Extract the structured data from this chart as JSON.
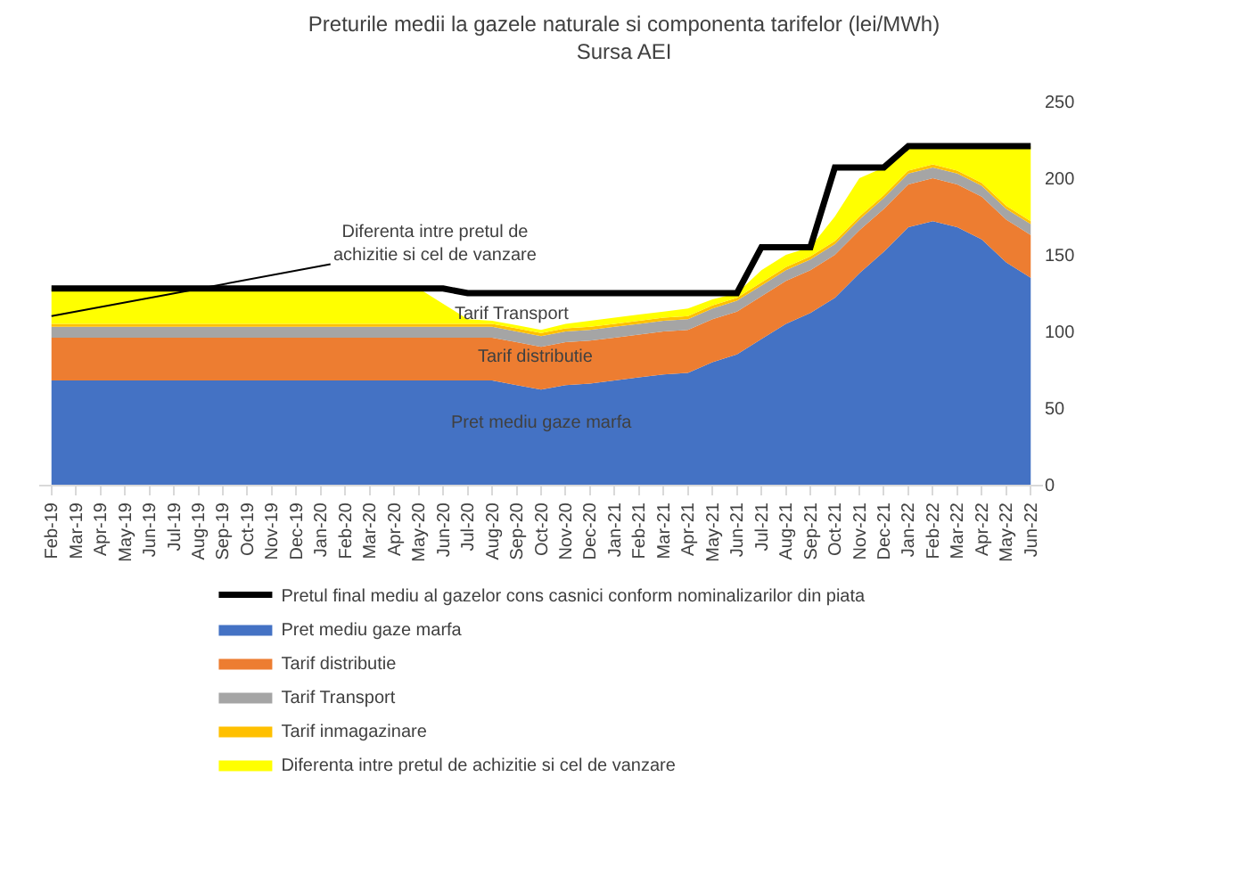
{
  "chart_data": {
    "type": "area",
    "stacked": true,
    "title": "Preturile medii la gazele naturale si componenta tarifelor (lei/MWh)",
    "subtitle": "Sursa AEI",
    "categories": [
      "Feb-19",
      "Mar-19",
      "Apr-19",
      "May-19",
      "Jun-19",
      "Jul-19",
      "Aug-19",
      "Sep-19",
      "Oct-19",
      "Nov-19",
      "Dec-19",
      "Jan-20",
      "Feb-20",
      "Mar-20",
      "Apr-20",
      "May-20",
      "Jun-20",
      "Jul-20",
      "Aug-20",
      "Sep-20",
      "Oct-20",
      "Nov-20",
      "Dec-20",
      "Jan-21",
      "Feb-21",
      "Mar-21",
      "Apr-21",
      "May-21",
      "Jun-21",
      "Jul-21",
      "Aug-21",
      "Sep-21",
      "Oct-21",
      "Nov-21",
      "Dec-21",
      "Jan-22",
      "Feb-22",
      "Mar-22",
      "Apr-22",
      "May-22",
      "Jun-22"
    ],
    "series": [
      {
        "name": "Pret mediu gaze marfa",
        "color": "#4472c4",
        "values": [
          68,
          68,
          68,
          68,
          68,
          68,
          68,
          68,
          68,
          68,
          68,
          68,
          68,
          68,
          68,
          68,
          68,
          68,
          68,
          65,
          62,
          65,
          66,
          68,
          70,
          72,
          73,
          80,
          85,
          95,
          105,
          112,
          122,
          138,
          152,
          168,
          172,
          168,
          160,
          145,
          135
        ]
      },
      {
        "name": "Tarif distributie",
        "color": "#ed7d31",
        "values": [
          28,
          28,
          28,
          28,
          28,
          28,
          28,
          28,
          28,
          28,
          28,
          28,
          28,
          28,
          28,
          28,
          28,
          28,
          28,
          28,
          28,
          28,
          28,
          28,
          28,
          28,
          28,
          28,
          28,
          28,
          28,
          28,
          28,
          28,
          28,
          28,
          28,
          28,
          28,
          28,
          28
        ]
      },
      {
        "name": "Tarif Transport",
        "color": "#a5a5a5",
        "values": [
          7,
          7,
          7,
          7,
          7,
          7,
          7,
          7,
          7,
          7,
          7,
          7,
          7,
          7,
          7,
          7,
          7,
          7,
          7,
          7,
          7,
          7,
          7,
          7,
          7,
          7,
          7,
          7,
          7,
          7,
          7,
          7,
          7,
          7,
          7,
          7,
          7,
          7,
          7,
          7,
          7
        ]
      },
      {
        "name": "Tarif inmagazinare",
        "color": "#ffc000",
        "values": [
          2,
          2,
          2,
          2,
          2,
          2,
          2,
          2,
          2,
          2,
          2,
          2,
          2,
          2,
          2,
          2,
          2,
          2,
          2,
          2,
          2,
          2,
          2,
          2,
          2,
          2,
          2,
          2,
          2,
          2,
          2,
          2,
          2,
          2,
          2,
          2,
          2,
          2,
          2,
          2,
          2
        ]
      },
      {
        "name": "Diferenta intre pretul de achizitie si cel de vanzare",
        "color": "#ffff00",
        "values": [
          23,
          23,
          23,
          23,
          23,
          23,
          23,
          23,
          23,
          23,
          23,
          23,
          23,
          23,
          23,
          23,
          13,
          3,
          2,
          2,
          2,
          3,
          4,
          4,
          4,
          4,
          5,
          4,
          3,
          8,
          8,
          6,
          16,
          25,
          18,
          16,
          12,
          16,
          24,
          39,
          49
        ]
      },
      {
        "name": "Pretul final mediu al gazelor cons casnici conform nominalizarilor din piata",
        "color": "#000000",
        "type": "line",
        "values": [
          128,
          128,
          128,
          128,
          128,
          128,
          128,
          128,
          128,
          128,
          128,
          128,
          128,
          128,
          128,
          128,
          128,
          125,
          125,
          125,
          125,
          125,
          125,
          125,
          125,
          125,
          125,
          125,
          125,
          155,
          155,
          155,
          207,
          207,
          207,
          221,
          221,
          221,
          221,
          221,
          221
        ]
      }
    ],
    "ylim": [
      0,
      250
    ],
    "yticks": [
      0,
      50,
      100,
      150,
      200,
      250
    ],
    "legend": "bottom",
    "marker": "none",
    "annotations": [
      {
        "text": "Diferenta intre pretul de\nachizitie si cel de vanzare",
        "x": "Feb-19",
        "y": 110
      },
      "Tarif Transport",
      "Tarif distributie",
      "Pret mediu gaze marfa"
    ]
  }
}
